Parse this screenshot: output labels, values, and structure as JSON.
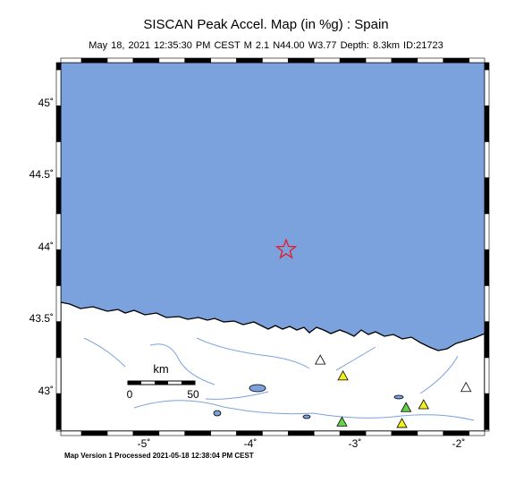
{
  "title": "SISCAN Peak Accel. Map (in %g) : Spain",
  "subtitle": "May 18, 2021 12:35:30 PM CEST   M 2.1   N44.00 W3.77   Depth: 8.3km   ID:21723",
  "footer": "Map Version 1 Processed 2021-05-18 12:38:04 PM CEST",
  "lat_labels": [
    "45˚",
    "44.5˚",
    "44˚",
    "43.5˚",
    "43˚"
  ],
  "lon_labels": [
    "-5˚",
    "-4˚",
    "-3˚",
    "-2˚"
  ],
  "scale_bar": {
    "unit": "km",
    "start": "0",
    "end": "50"
  },
  "epicenter": {
    "lat": 44.0,
    "lon": -3.77
  },
  "colors": {
    "sea": "#7ba2dc",
    "land": "#ffffff",
    "epicenter": "#e8192c",
    "station_green": "#66d24a",
    "station_yellow": "#f2ef1a",
    "station_none": "#ffffff",
    "river": "#7ba2dc"
  },
  "stations": [
    {
      "lon": -3.44,
      "lat": 43.23,
      "type": "none"
    },
    {
      "lon": -3.22,
      "lat": 43.12,
      "type": "yellow"
    },
    {
      "lon": -2.03,
      "lat": 43.04,
      "type": "none"
    },
    {
      "lon": -2.44,
      "lat": 42.92,
      "type": "yellow"
    },
    {
      "lon": -2.61,
      "lat": 42.9,
      "type": "green"
    },
    {
      "lon": -3.23,
      "lat": 42.8,
      "type": "green"
    },
    {
      "lon": -2.65,
      "lat": 42.79,
      "type": "yellow"
    }
  ]
}
